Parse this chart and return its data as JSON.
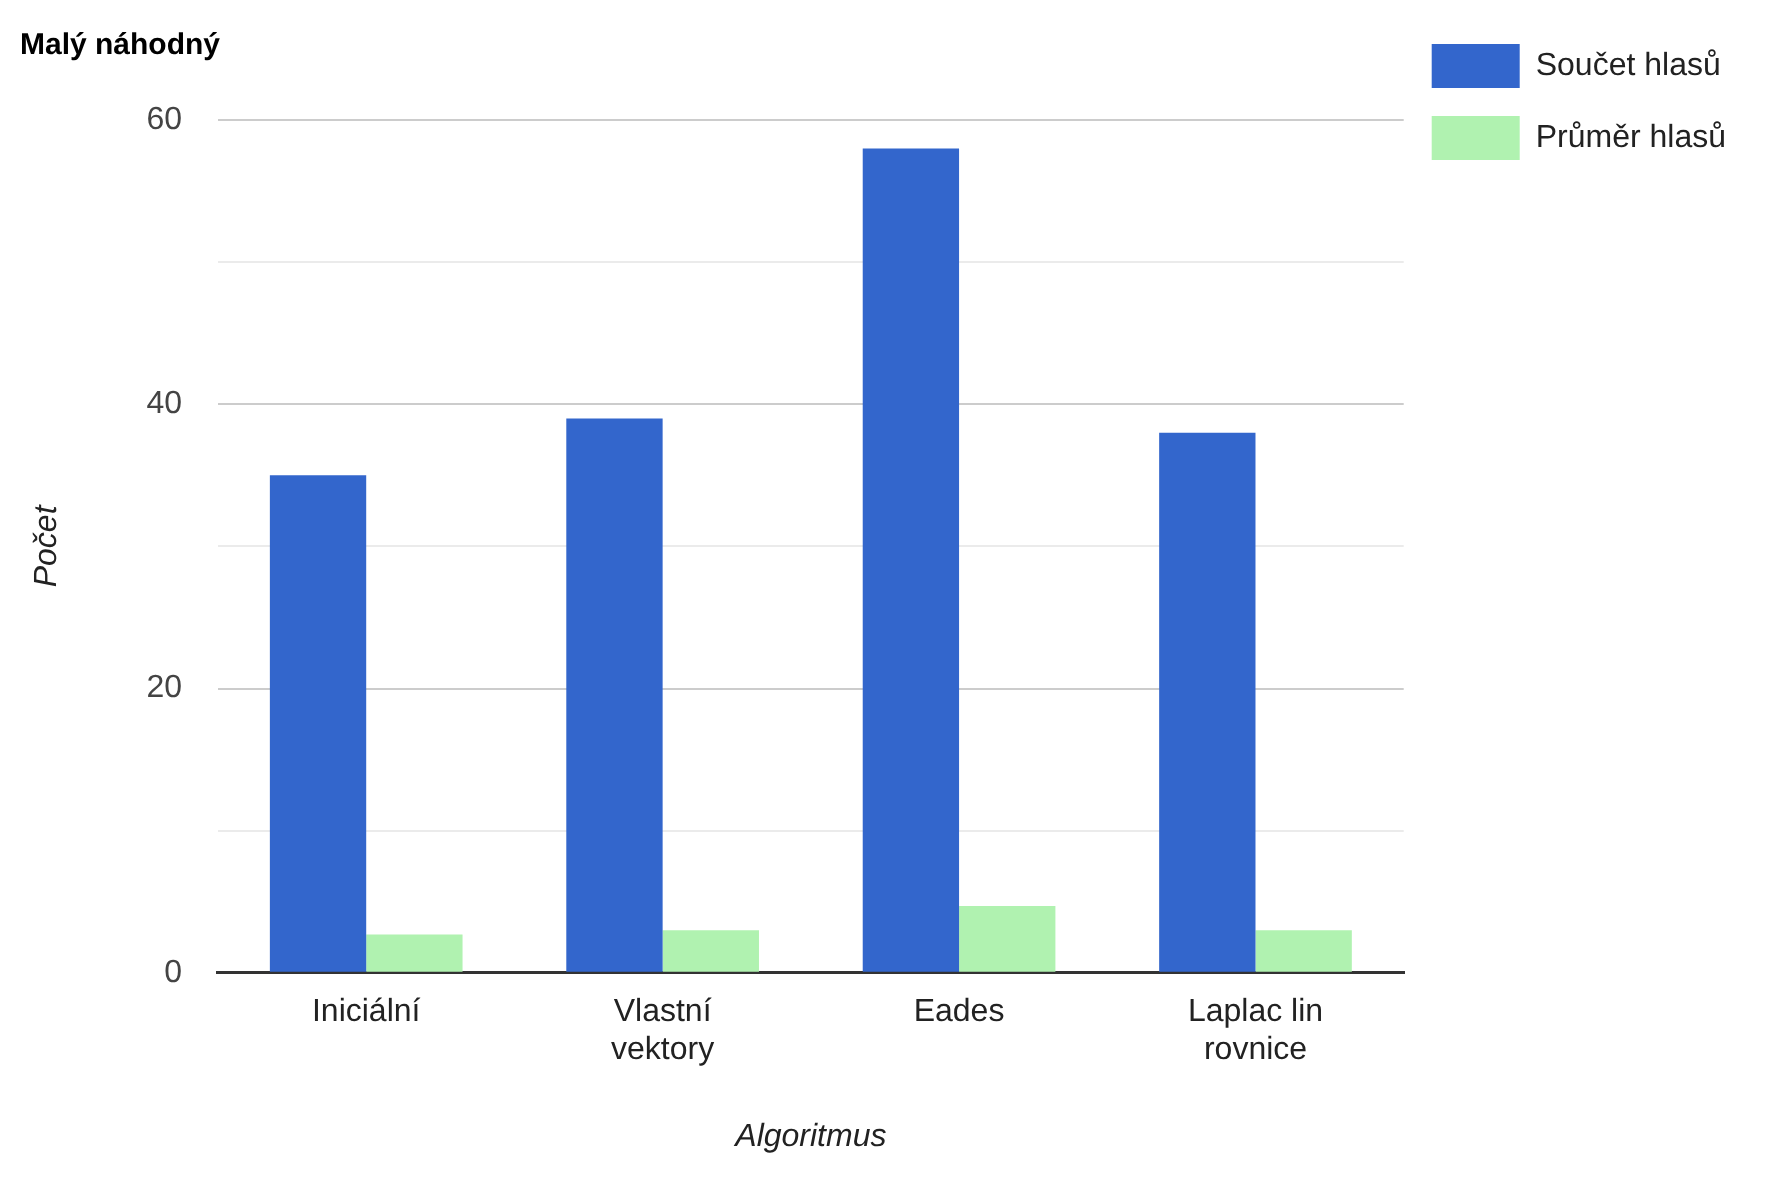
{
  "chart_data": {
    "type": "bar",
    "title": "Malý náhodný",
    "xlabel": "Algoritmus",
    "ylabel": "Počet",
    "categories": [
      "Iniciální",
      "Vlastní vektory",
      "Eades",
      "Laplac lin rovnice"
    ],
    "series": [
      {
        "name": "Součet hlasů",
        "color": "#3366cc",
        "values": [
          35,
          39,
          58,
          38
        ]
      },
      {
        "name": "Průměr hlasů",
        "color": "#b0f2b0",
        "values": [
          2.7,
          3.0,
          4.7,
          3.0
        ]
      }
    ],
    "ylim": [
      0,
      60
    ],
    "yticks": [
      0,
      {
        "value": 10,
        "label": null
      },
      20,
      {
        "value": 30,
        "label": null
      },
      40,
      {
        "value": 50,
        "label": null
      },
      60
    ],
    "grid": true,
    "legend": "top right"
  }
}
